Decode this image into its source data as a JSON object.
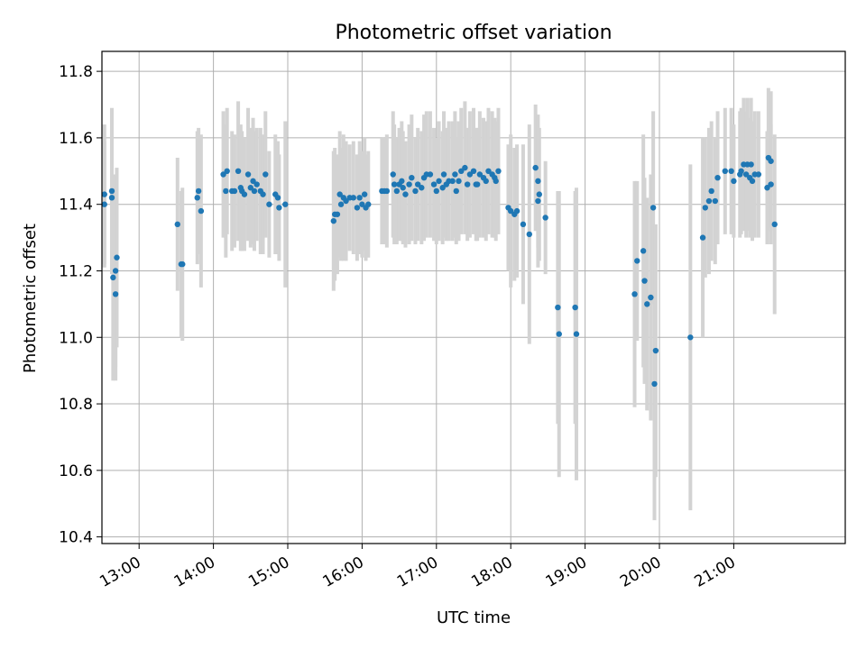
{
  "chart_data": {
    "type": "scatter",
    "title": "Photometric offset variation",
    "xlabel": "UTC time",
    "ylabel": "Photometric offset",
    "x_ticks": [
      "13:00",
      "14:00",
      "15:00",
      "16:00",
      "17:00",
      "18:00",
      "19:00",
      "20:00",
      "21:00"
    ],
    "y_ticks": [
      "10.4",
      "10.6",
      "10.8",
      "11.0",
      "11.2",
      "11.4",
      "11.6",
      "11.8"
    ],
    "xlim": [
      "12:30",
      "22:30"
    ],
    "ylim": [
      10.38,
      11.86
    ],
    "grid": true,
    "point_color": "#1f77b4",
    "errorbar_color": "#d3d3d3",
    "points": [
      {
        "t": "12:32",
        "y": 11.43,
        "err": 0.21
      },
      {
        "t": "12:32",
        "y": 11.4,
        "err": 0.19
      },
      {
        "t": "12:38",
        "y": 11.42,
        "err": 0.22
      },
      {
        "t": "12:38",
        "y": 11.44,
        "err": 0.25
      },
      {
        "t": "12:39",
        "y": 11.18,
        "err": 0.31
      },
      {
        "t": "12:41",
        "y": 11.2,
        "err": 0.29
      },
      {
        "t": "12:41",
        "y": 11.13,
        "err": 0.26
      },
      {
        "t": "12:42",
        "y": 11.24,
        "err": 0.27
      },
      {
        "t": "13:31",
        "y": 11.34,
        "err": 0.2
      },
      {
        "t": "13:34",
        "y": 11.22,
        "err": 0.22
      },
      {
        "t": "13:35",
        "y": 11.22,
        "err": 0.23
      },
      {
        "t": "13:47",
        "y": 11.42,
        "err": 0.2
      },
      {
        "t": "13:48",
        "y": 11.44,
        "err": 0.19
      },
      {
        "t": "13:50",
        "y": 11.38,
        "err": 0.23
      },
      {
        "t": "14:08",
        "y": 11.49,
        "err": 0.19
      },
      {
        "t": "14:10",
        "y": 11.44,
        "err": 0.2
      },
      {
        "t": "14:11",
        "y": 11.5,
        "err": 0.19
      },
      {
        "t": "14:15",
        "y": 11.44,
        "err": 0.18
      },
      {
        "t": "14:17",
        "y": 11.44,
        "err": 0.17
      },
      {
        "t": "14:20",
        "y": 11.5,
        "err": 0.21
      },
      {
        "t": "14:22",
        "y": 11.45,
        "err": 0.19
      },
      {
        "t": "14:23",
        "y": 11.44,
        "err": 0.18
      },
      {
        "t": "14:25",
        "y": 11.43,
        "err": 0.17
      },
      {
        "t": "14:28",
        "y": 11.49,
        "err": 0.2
      },
      {
        "t": "14:30",
        "y": 11.45,
        "err": 0.18
      },
      {
        "t": "14:32",
        "y": 11.47,
        "err": 0.19
      },
      {
        "t": "14:33",
        "y": 11.44,
        "err": 0.18
      },
      {
        "t": "14:35",
        "y": 11.46,
        "err": 0.17
      },
      {
        "t": "14:38",
        "y": 11.44,
        "err": 0.19
      },
      {
        "t": "14:40",
        "y": 11.43,
        "err": 0.18
      },
      {
        "t": "14:42",
        "y": 11.49,
        "err": 0.19
      },
      {
        "t": "14:45",
        "y": 11.4,
        "err": 0.16
      },
      {
        "t": "14:50",
        "y": 11.43,
        "err": 0.18
      },
      {
        "t": "14:52",
        "y": 11.42,
        "err": 0.17
      },
      {
        "t": "14:53",
        "y": 11.39,
        "err": 0.16
      },
      {
        "t": "14:58",
        "y": 11.4,
        "err": 0.25
      },
      {
        "t": "15:37",
        "y": 11.35,
        "err": 0.21
      },
      {
        "t": "15:38",
        "y": 11.37,
        "err": 0.2
      },
      {
        "t": "15:40",
        "y": 11.37,
        "err": 0.18
      },
      {
        "t": "15:42",
        "y": 11.43,
        "err": 0.19
      },
      {
        "t": "15:43",
        "y": 11.4,
        "err": 0.17
      },
      {
        "t": "15:45",
        "y": 11.42,
        "err": 0.19
      },
      {
        "t": "15:47",
        "y": 11.41,
        "err": 0.18
      },
      {
        "t": "15:50",
        "y": 11.42,
        "err": 0.16
      },
      {
        "t": "15:53",
        "y": 11.42,
        "err": 0.17
      },
      {
        "t": "15:56",
        "y": 11.39,
        "err": 0.16
      },
      {
        "t": "15:58",
        "y": 11.42,
        "err": 0.17
      },
      {
        "t": "16:00",
        "y": 11.4,
        "err": 0.16
      },
      {
        "t": "16:02",
        "y": 11.43,
        "err": 0.17
      },
      {
        "t": "16:03",
        "y": 11.39,
        "err": 0.16
      },
      {
        "t": "16:05",
        "y": 11.4,
        "err": 0.16
      },
      {
        "t": "16:16",
        "y": 11.44,
        "err": 0.16
      },
      {
        "t": "16:18",
        "y": 11.44,
        "err": 0.16
      },
      {
        "t": "16:20",
        "y": 11.44,
        "err": 0.17
      },
      {
        "t": "16:25",
        "y": 11.49,
        "err": 0.19
      },
      {
        "t": "16:26",
        "y": 11.46,
        "err": 0.18
      },
      {
        "t": "16:28",
        "y": 11.44,
        "err": 0.16
      },
      {
        "t": "16:30",
        "y": 11.46,
        "err": 0.17
      },
      {
        "t": "16:32",
        "y": 11.47,
        "err": 0.18
      },
      {
        "t": "16:33",
        "y": 11.45,
        "err": 0.17
      },
      {
        "t": "16:35",
        "y": 11.43,
        "err": 0.16
      },
      {
        "t": "16:38",
        "y": 11.46,
        "err": 0.18
      },
      {
        "t": "16:40",
        "y": 11.48,
        "err": 0.19
      },
      {
        "t": "16:43",
        "y": 11.44,
        "err": 0.16
      },
      {
        "t": "16:45",
        "y": 11.46,
        "err": 0.17
      },
      {
        "t": "16:48",
        "y": 11.45,
        "err": 0.17
      },
      {
        "t": "16:50",
        "y": 11.48,
        "err": 0.19
      },
      {
        "t": "16:52",
        "y": 11.49,
        "err": 0.19
      },
      {
        "t": "16:55",
        "y": 11.49,
        "err": 0.19
      },
      {
        "t": "16:58",
        "y": 11.46,
        "err": 0.17
      },
      {
        "t": "17:00",
        "y": 11.44,
        "err": 0.16
      },
      {
        "t": "17:02",
        "y": 11.47,
        "err": 0.18
      },
      {
        "t": "17:05",
        "y": 11.45,
        "err": 0.17
      },
      {
        "t": "17:06",
        "y": 11.49,
        "err": 0.19
      },
      {
        "t": "17:08",
        "y": 11.46,
        "err": 0.17
      },
      {
        "t": "17:10",
        "y": 11.47,
        "err": 0.18
      },
      {
        "t": "17:13",
        "y": 11.47,
        "err": 0.18
      },
      {
        "t": "17:15",
        "y": 11.49,
        "err": 0.19
      },
      {
        "t": "17:16",
        "y": 11.44,
        "err": 0.16
      },
      {
        "t": "17:18",
        "y": 11.47,
        "err": 0.18
      },
      {
        "t": "17:20",
        "y": 11.5,
        "err": 0.19
      },
      {
        "t": "17:23",
        "y": 11.51,
        "err": 0.2
      },
      {
        "t": "17:25",
        "y": 11.46,
        "err": 0.17
      },
      {
        "t": "17:27",
        "y": 11.49,
        "err": 0.19
      },
      {
        "t": "17:30",
        "y": 11.5,
        "err": 0.19
      },
      {
        "t": "17:32",
        "y": 11.46,
        "err": 0.17
      },
      {
        "t": "17:33",
        "y": 11.46,
        "err": 0.17
      },
      {
        "t": "17:35",
        "y": 11.49,
        "err": 0.19
      },
      {
        "t": "17:38",
        "y": 11.48,
        "err": 0.18
      },
      {
        "t": "17:40",
        "y": 11.47,
        "err": 0.18
      },
      {
        "t": "17:42",
        "y": 11.5,
        "err": 0.19
      },
      {
        "t": "17:45",
        "y": 11.49,
        "err": 0.19
      },
      {
        "t": "17:47",
        "y": 11.48,
        "err": 0.18
      },
      {
        "t": "17:48",
        "y": 11.47,
        "err": 0.18
      },
      {
        "t": "17:50",
        "y": 11.5,
        "err": 0.19
      },
      {
        "t": "17:58",
        "y": 11.39,
        "err": 0.19
      },
      {
        "t": "18:00",
        "y": 11.38,
        "err": 0.23
      },
      {
        "t": "18:03",
        "y": 11.37,
        "err": 0.2
      },
      {
        "t": "18:05",
        "y": 11.38,
        "err": 0.2
      },
      {
        "t": "18:10",
        "y": 11.34,
        "err": 0.24
      },
      {
        "t": "18:15",
        "y": 11.31,
        "err": 0.33
      },
      {
        "t": "18:20",
        "y": 11.51,
        "err": 0.19
      },
      {
        "t": "18:22",
        "y": 11.47,
        "err": 0.2
      },
      {
        "t": "18:23",
        "y": 11.43,
        "err": 0.2
      },
      {
        "t": "18:22",
        "y": 11.41,
        "err": 0.2
      },
      {
        "t": "18:28",
        "y": 11.36,
        "err": 0.17
      },
      {
        "t": "18:38",
        "y": 11.09,
        "err": 0.35
      },
      {
        "t": "18:39",
        "y": 11.01,
        "err": 0.43
      },
      {
        "t": "18:52",
        "y": 11.09,
        "err": 0.35
      },
      {
        "t": "18:53",
        "y": 11.01,
        "err": 0.44
      },
      {
        "t": "19:40",
        "y": 11.13,
        "err": 0.34
      },
      {
        "t": "19:42",
        "y": 11.23,
        "err": 0.24
      },
      {
        "t": "19:47",
        "y": 11.26,
        "err": 0.35
      },
      {
        "t": "19:48",
        "y": 11.17,
        "err": 0.31
      },
      {
        "t": "19:50",
        "y": 11.1,
        "err": 0.32
      },
      {
        "t": "19:53",
        "y": 11.12,
        "err": 0.37
      },
      {
        "t": "19:55",
        "y": 11.39,
        "err": 0.29
      },
      {
        "t": "19:56",
        "y": 10.86,
        "err": 0.41
      },
      {
        "t": "19:57",
        "y": 10.96,
        "err": 0.38
      },
      {
        "t": "20:25",
        "y": 11.0,
        "err": 0.52
      },
      {
        "t": "20:35",
        "y": 11.3,
        "err": 0.3
      },
      {
        "t": "20:37",
        "y": 11.39,
        "err": 0.21
      },
      {
        "t": "20:40",
        "y": 11.41,
        "err": 0.22
      },
      {
        "t": "20:42",
        "y": 11.44,
        "err": 0.21
      },
      {
        "t": "20:45",
        "y": 11.41,
        "err": 0.19
      },
      {
        "t": "20:47",
        "y": 11.48,
        "err": 0.2
      },
      {
        "t": "20:53",
        "y": 11.5,
        "err": 0.19
      },
      {
        "t": "20:58",
        "y": 11.5,
        "err": 0.19
      },
      {
        "t": "21:00",
        "y": 11.47,
        "err": 0.17
      },
      {
        "t": "21:05",
        "y": 11.49,
        "err": 0.19
      },
      {
        "t": "21:06",
        "y": 11.5,
        "err": 0.19
      },
      {
        "t": "21:08",
        "y": 11.52,
        "err": 0.2
      },
      {
        "t": "21:10",
        "y": 11.49,
        "err": 0.19
      },
      {
        "t": "21:11",
        "y": 11.52,
        "err": 0.2
      },
      {
        "t": "21:13",
        "y": 11.48,
        "err": 0.18
      },
      {
        "t": "21:14",
        "y": 11.52,
        "err": 0.2
      },
      {
        "t": "21:15",
        "y": 11.47,
        "err": 0.18
      },
      {
        "t": "21:17",
        "y": 11.49,
        "err": 0.19
      },
      {
        "t": "21:20",
        "y": 11.49,
        "err": 0.19
      },
      {
        "t": "21:27",
        "y": 11.45,
        "err": 0.17
      },
      {
        "t": "21:28",
        "y": 11.54,
        "err": 0.21
      },
      {
        "t": "21:30",
        "y": 11.53,
        "err": 0.21
      },
      {
        "t": "21:30",
        "y": 11.46,
        "err": 0.18
      },
      {
        "t": "21:33",
        "y": 11.34,
        "err": 0.27
      }
    ]
  }
}
